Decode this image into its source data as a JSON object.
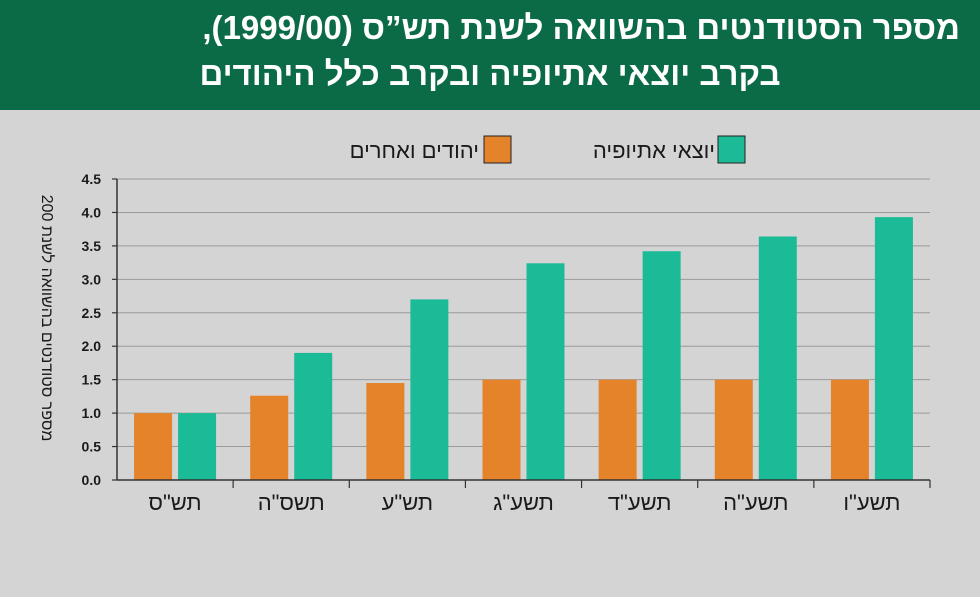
{
  "title_line1": "מספר הסטודנטים בהשוואה לשנת תש”ס (1999/00),",
  "title_line2": "בקרב יוצאי אתיופיה ובקרב כלל היהודים",
  "chart_data": {
    "type": "bar",
    "ylabel": "מספר סטודנטים בהשוואה לשנת 200",
    "ylim": [
      0,
      4.5
    ],
    "yticks": [
      "0.0",
      "0.5",
      "1.0",
      "1.5",
      "2.0",
      "2.5",
      "3.0",
      "3.5",
      "4.0",
      "4.5"
    ],
    "categories": [
      "תש\"ס",
      "תשס\"ה",
      "תש\"ע",
      "תשע\"ג",
      "תשע\"ד",
      "תשע\"ה",
      "תשע\"ו"
    ],
    "series": [
      {
        "name": "יהודים ואחרים",
        "color": "#e5832b",
        "values": [
          1.0,
          1.26,
          1.45,
          1.5,
          1.5,
          1.5,
          1.5
        ]
      },
      {
        "name": "יוצאי אתיופיה",
        "color": "#1cbb97",
        "values": [
          1.0,
          1.9,
          2.7,
          3.24,
          3.42,
          3.64,
          3.93
        ]
      }
    ],
    "legend_position": "top-center",
    "grid": true
  }
}
